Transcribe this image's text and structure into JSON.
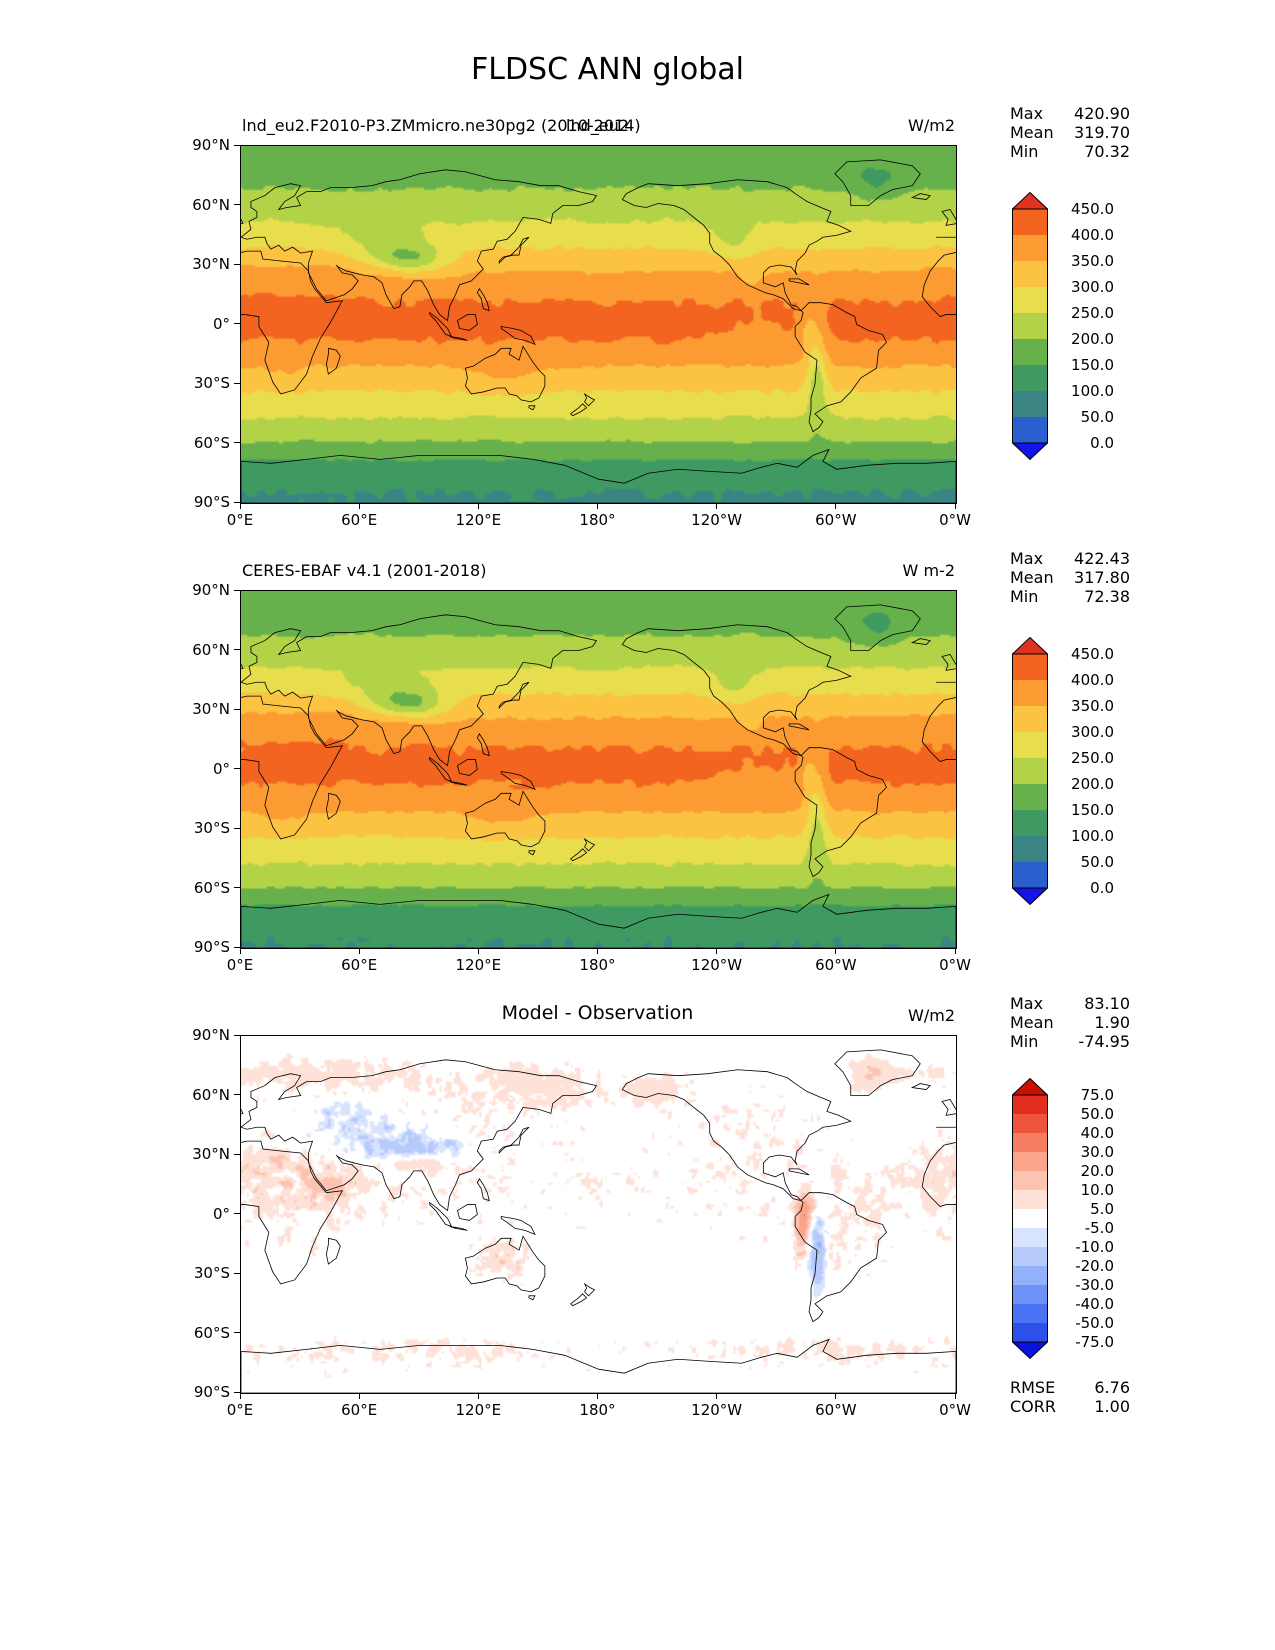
{
  "chart_data": {
    "type": "heatmap",
    "title": "FLDSC ANN global",
    "projection": "equirectangular",
    "x_ticks": [
      "0°E",
      "60°E",
      "120°E",
      "180°",
      "120°W",
      "60°W",
      "0°W"
    ],
    "y_ticks": [
      "90°N",
      "60°N",
      "30°N",
      "0°",
      "30°S",
      "60°S",
      "90°S"
    ],
    "lon_range_deg_east": [
      0,
      360
    ],
    "lat_range": [
      -90,
      90
    ],
    "labels": {
      "max": "Max",
      "mean": "Mean",
      "min": "Min",
      "rmse": "RMSE",
      "corr": "CORR"
    },
    "panels": [
      {
        "name": "model",
        "title_left": "lnd_eu2.F2010-P3.ZMmicro.ne30pg2 (2010-2014)",
        "title_center": "lnd_eu2",
        "units": "W/m2",
        "stats": {
          "max": "420.90",
          "mean": "319.70",
          "min": "70.32"
        },
        "colorbar": {
          "boundaries": [
            0,
            50,
            100,
            150,
            200,
            250,
            300,
            350,
            400,
            450
          ],
          "band_colors": [
            "#2a5fd0",
            "#3a8583",
            "#3f9a62",
            "#66b14c",
            "#b2d248",
            "#e7dd4d",
            "#fcc343",
            "#fb9b32",
            "#f2641f"
          ],
          "under_color": "#1413e8",
          "over_color": "#df3220",
          "tick_labels": [
            "450.0",
            "400.0",
            "350.0",
            "300.0",
            "250.0",
            "200.0",
            "150.0",
            "100.0",
            "50.0",
            "0.0"
          ]
        },
        "field": {
          "kind": "flux",
          "seed": 0,
          "zonal_lat": [
            -90,
            -85,
            -78,
            -70,
            -64,
            -58,
            -50,
            -42,
            -34,
            -26,
            -18,
            -10,
            -4,
            0,
            4,
            12,
            20,
            28,
            36,
            44,
            52,
            60,
            68,
            76,
            84,
            90
          ],
          "zonal_value": [
            96,
            99,
            112,
            140,
            175,
            205,
            240,
            268,
            298,
            330,
            362,
            395,
            408,
            412,
            410,
            400,
            375,
            345,
            310,
            278,
            250,
            228,
            200,
            182,
            172,
            170
          ],
          "anomalies": [
            [
              85,
              33,
              13,
              5.5,
              -115
            ],
            [
              70,
              42,
              15,
              7,
              -45
            ],
            [
              12,
              22,
              18,
              8,
              16
            ],
            [
              45,
              24,
              9,
              6,
              20
            ],
            [
              -70,
              -22,
              3.5,
              18,
              -95
            ],
            [
              -75,
              -3,
              3,
              8,
              -55
            ],
            [
              -112,
              42,
              8,
              7,
              -45
            ],
            [
              -103,
              23,
              4,
              4,
              -30
            ],
            [
              -40,
              72,
              9,
              7,
              -50
            ],
            [
              132,
              -25,
              12,
              7,
              26
            ],
            [
              22,
              -25,
              8,
              6,
              14
            ],
            [
              -100,
              -4,
              14,
              6,
              -16
            ],
            [
              78,
              23,
              10,
              4,
              16
            ]
          ]
        }
      },
      {
        "name": "observation",
        "title_left": "CERES-EBAF v4.1 (2001-2018)",
        "units": "W m-2",
        "stats": {
          "max": "422.43",
          "mean": "317.80",
          "min": "72.38"
        },
        "colorbar": {
          "boundaries": [
            0,
            50,
            100,
            150,
            200,
            250,
            300,
            350,
            400,
            450
          ],
          "band_colors": [
            "#2a5fd0",
            "#3a8583",
            "#3f9a62",
            "#66b14c",
            "#b2d248",
            "#e7dd4d",
            "#fcc343",
            "#fb9b32",
            "#f2641f"
          ],
          "under_color": "#1413e8",
          "over_color": "#df3220",
          "tick_labels": [
            "450.0",
            "400.0",
            "350.0",
            "300.0",
            "250.0",
            "200.0",
            "150.0",
            "100.0",
            "50.0",
            "0.0"
          ]
        },
        "field": {
          "kind": "flux",
          "seed": 11,
          "zonal_lat": [
            -90,
            -85,
            -78,
            -70,
            -64,
            -58,
            -50,
            -42,
            -34,
            -26,
            -18,
            -10,
            -4,
            0,
            4,
            12,
            20,
            28,
            36,
            44,
            52,
            60,
            68,
            76,
            84,
            90
          ],
          "zonal_value": [
            100,
            103,
            115,
            142,
            178,
            207,
            242,
            270,
            300,
            332,
            364,
            394,
            406,
            410,
            408,
            398,
            373,
            343,
            308,
            276,
            248,
            226,
            198,
            180,
            170,
            168
          ],
          "anomalies": [
            [
              85,
              33,
              13,
              5.5,
              -122
            ],
            [
              70,
              42,
              15,
              7,
              -42
            ],
            [
              12,
              22,
              18,
              8,
              14
            ],
            [
              45,
              24,
              9,
              6,
              22
            ],
            [
              -70,
              -22,
              3.5,
              18,
              -92
            ],
            [
              -75,
              -3,
              3,
              8,
              -52
            ],
            [
              -112,
              42,
              8,
              7,
              -42
            ],
            [
              -103,
              23,
              4,
              4,
              -28
            ],
            [
              -40,
              72,
              9,
              7,
              -48
            ],
            [
              132,
              -25,
              12,
              7,
              24
            ],
            [
              22,
              -25,
              8,
              6,
              13
            ],
            [
              -100,
              -4,
              14,
              6,
              -18
            ],
            [
              78,
              23,
              10,
              4,
              18
            ]
          ]
        }
      },
      {
        "name": "difference",
        "title_center": "Model - Observation",
        "units": "W/m2",
        "stats": {
          "max": "83.10",
          "mean": "1.90",
          "min": "-74.95"
        },
        "extra": {
          "rmse": "6.76",
          "corr": "1.00"
        },
        "colorbar": {
          "boundaries": [
            -75,
            -50,
            -40,
            -30,
            -20,
            -10,
            -5,
            5,
            10,
            20,
            30,
            40,
            50,
            75
          ],
          "band_colors": [
            "#2d50ea",
            "#4a72f4",
            "#6e92f8",
            "#93b1fa",
            "#b6cbfc",
            "#d8e4fe",
            "#ffffff",
            "#fee1d7",
            "#fcc3b1",
            "#faa58b",
            "#f57e62",
            "#ef543c",
            "#e32d1e"
          ],
          "under_color": "#0a11dd",
          "over_color": "#cb1000",
          "tick_labels": [
            "75.0",
            "50.0",
            "40.0",
            "30.0",
            "20.0",
            "10.0",
            "5.0",
            "-5.0",
            "-10.0",
            "-20.0",
            "-30.0",
            "-40.0",
            "-50.0",
            "-75.0"
          ]
        },
        "field": {
          "kind": "diff",
          "base": 1.5,
          "noise_amp": 2.2,
          "noise_regions": [
            [
              75,
              45,
              45,
              16,
              6
            ],
            [
              -105,
              45,
              25,
              12,
              5
            ],
            [
              20,
              8,
              24,
              18,
              5
            ],
            [
              -60,
              -12,
              18,
              14,
              6
            ],
            [
              133,
              -25,
              12,
              8,
              4
            ],
            [
              0,
              -75,
              400,
              8,
              2
            ]
          ],
          "anomalies": [
            [
              80,
              33,
              15,
              6,
              -16
            ],
            [
              58,
              47,
              18,
              8,
              -9
            ],
            [
              88,
              26,
              12,
              3,
              13
            ],
            [
              -70,
              -18,
              3,
              16,
              -22
            ],
            [
              -77,
              -7,
              2.5,
              8,
              24
            ],
            [
              -74,
              4,
              4,
              5,
              14
            ],
            [
              -42,
              72,
              8,
              6,
              8
            ],
            [
              10,
              20,
              20,
              8,
              5
            ],
            [
              45,
              14,
              8,
              6,
              8
            ],
            [
              134,
              -25,
              10,
              6,
              5
            ],
            [
              105,
              33,
              8,
              5,
              -7
            ],
            [
              150,
              65,
              22,
              8,
              6
            ],
            [
              -150,
              62,
              12,
              6,
              7
            ],
            [
              40,
              70,
              45,
              6,
              6
            ],
            [
              0,
              12,
              400,
              22,
              2.5
            ],
            [
              -60,
              -68,
              60,
              5,
              4
            ],
            [
              100,
              -68,
              60,
              5,
              3
            ]
          ]
        }
      }
    ]
  }
}
